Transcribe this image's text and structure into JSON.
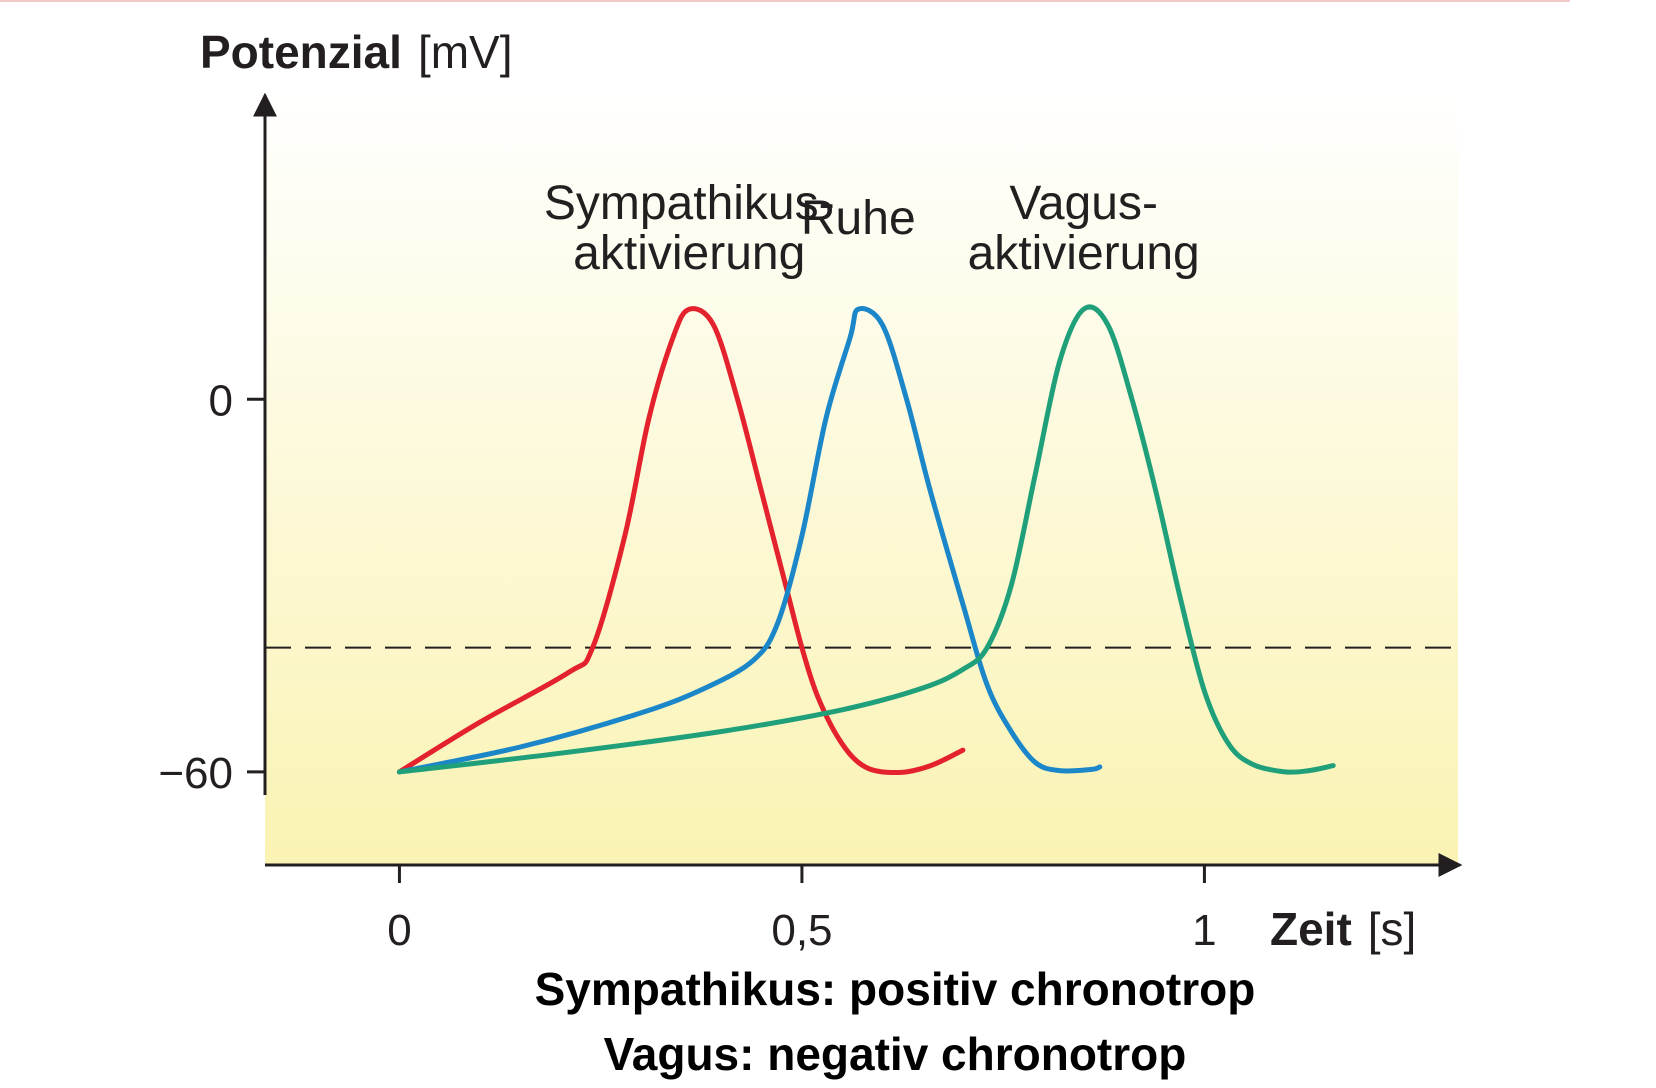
{
  "chart_data": {
    "type": "line",
    "y_axis_title": {
      "bold": "Potenzial",
      "unit": "[mV]"
    },
    "x_axis_title": {
      "bold": "Zeit",
      "unit": "[s]"
    },
    "x_ticks": [
      {
        "value": 0,
        "label": "0"
      },
      {
        "value": 0.5,
        "label": "0,5"
      },
      {
        "value": 1,
        "label": "1"
      }
    ],
    "y_ticks": [
      {
        "value": 0,
        "label": "0"
      },
      {
        "value": -60,
        "label": "−60"
      }
    ],
    "xlim": [
      -0.167,
      1.315
    ],
    "ylim": [
      -75,
      49
    ],
    "threshold": -40,
    "grid": false,
    "background": {
      "top": "#ffffff",
      "bottom": "#faf3b3"
    },
    "series": [
      {
        "lines": [
          "Sympathikus-",
          "aktivierung"
        ],
        "color": "#e4222d",
        "points": [
          [
            0,
            -60
          ],
          [
            0.1,
            -52
          ],
          [
            0.21,
            -44
          ],
          [
            0.24,
            -40
          ],
          [
            0.28,
            -22
          ],
          [
            0.31,
            -3
          ],
          [
            0.34,
            10
          ],
          [
            0.36,
            14.5
          ],
          [
            0.39,
            12
          ],
          [
            0.42,
            0
          ],
          [
            0.45,
            -15
          ],
          [
            0.48,
            -30
          ],
          [
            0.5,
            -40
          ],
          [
            0.52,
            -48
          ],
          [
            0.55,
            -55.5
          ],
          [
            0.58,
            -59.3
          ],
          [
            0.62,
            -60.1
          ],
          [
            0.66,
            -59
          ],
          [
            0.7,
            -56.5
          ]
        ]
      },
      {
        "lines": [
          "Ruhe"
        ],
        "color": "#1b87c9",
        "points": [
          [
            0,
            -60
          ],
          [
            0.15,
            -56
          ],
          [
            0.3,
            -50.5
          ],
          [
            0.38,
            -46.5
          ],
          [
            0.44,
            -42
          ],
          [
            0.47,
            -36
          ],
          [
            0.5,
            -22
          ],
          [
            0.53,
            -3
          ],
          [
            0.56,
            10
          ],
          [
            0.57,
            14.5
          ],
          [
            0.6,
            12
          ],
          [
            0.63,
            0
          ],
          [
            0.66,
            -15
          ],
          [
            0.7,
            -33
          ],
          [
            0.73,
            -46
          ],
          [
            0.76,
            -53.5
          ],
          [
            0.79,
            -58.5
          ],
          [
            0.82,
            -59.8
          ],
          [
            0.86,
            -59.6
          ],
          [
            0.87,
            -59.2
          ]
        ]
      },
      {
        "lines": [
          "Vagus-",
          "aktivierung"
        ],
        "color": "#1fa07a",
        "points": [
          [
            0,
            -60
          ],
          [
            0.2,
            -57
          ],
          [
            0.4,
            -53.5
          ],
          [
            0.55,
            -50
          ],
          [
            0.65,
            -46.5
          ],
          [
            0.7,
            -43.5
          ],
          [
            0.73,
            -40
          ],
          [
            0.76,
            -30
          ],
          [
            0.79,
            -12
          ],
          [
            0.82,
            6
          ],
          [
            0.85,
            14.5
          ],
          [
            0.88,
            12
          ],
          [
            0.91,
            0
          ],
          [
            0.94,
            -15
          ],
          [
            0.97,
            -32
          ],
          [
            1.0,
            -47
          ],
          [
            1.03,
            -55.5
          ],
          [
            1.06,
            -58.8
          ],
          [
            1.1,
            -60
          ],
          [
            1.13,
            -59.8
          ],
          [
            1.16,
            -59
          ]
        ]
      }
    ],
    "caption": [
      "Sympathikus: positiv chronotrop",
      "Vagus: negativ chronotrop"
    ]
  }
}
